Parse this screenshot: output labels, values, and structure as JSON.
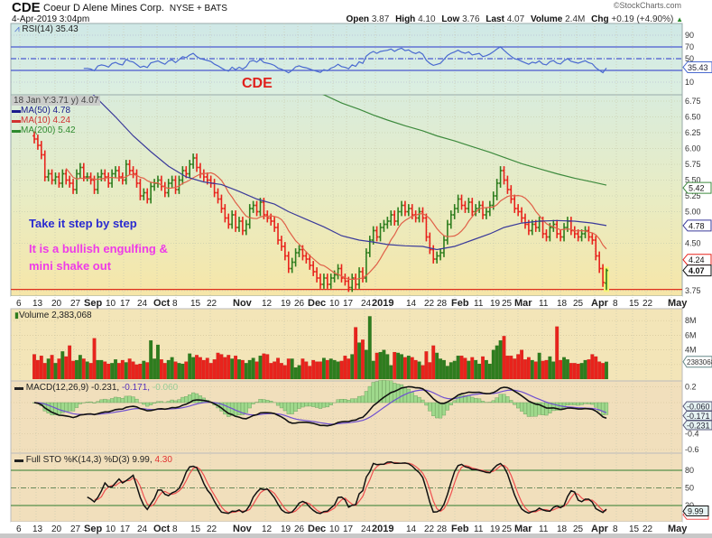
{
  "header": {
    "symbol": "CDE",
    "company": "Coeur D Alene Mines Corp.",
    "exchange": "NYSE + BATS",
    "datetime": "4-Apr-2019 3:04pm",
    "brand": "©StockCharts.com",
    "open_label": "Open",
    "open": "3.87",
    "high_label": "High",
    "high": "4.10",
    "low_label": "Low",
    "low": "3.76",
    "last_label": "Last",
    "last": "4.07",
    "volume_label": "Volume",
    "volume": "2.4M",
    "chg_label": "Chg",
    "chg": "+0.19 (+4.90%)",
    "chg_arrow": "▲"
  },
  "annotations": {
    "cde": "CDE",
    "line1": "Take it step by step",
    "line2": "It is a bullish engulfing &",
    "line3": "mini shake out"
  },
  "colors": {
    "up": "#2e7d1e",
    "down": "#e8231c",
    "ma50": "#3a3a9a",
    "ma10": "#e06048",
    "ma200": "#3d8a3d",
    "rsi": "#4a6ad0",
    "macd": "#111111",
    "signal": "#7050d0",
    "histogram": "#9fd98c",
    "sto_k": "#111111",
    "sto_d": "#f05050",
    "support": "#e0301c"
  },
  "chart_data": {
    "type": "ohlc",
    "symbol": "CDE",
    "support_line": 3.77,
    "price_axis": {
      "ylim": [
        3.7,
        6.9
      ],
      "ticks": [
        "6.75",
        "6.50",
        "6.25",
        "6.00",
        "5.75",
        "5.50",
        "5.25",
        "5.00",
        "4.50",
        "3.75"
      ]
    },
    "price_legend": {
      "crosshair": "18 Jan Y:3.71 y) 4.07",
      "ma50": "MA(50) 4.78",
      "ma10": "MA(10) 4.24",
      "ma200": "MA(200) 5.42"
    },
    "price_tags": {
      "ma200": "5.42",
      "ma50": "4.78",
      "ma10": "4.24",
      "last": "4.07"
    },
    "last_bar": {
      "open": 3.87,
      "high": 4.1,
      "low": 3.76,
      "close": 4.07
    },
    "x_axis_labels": [
      {
        "t": "6"
      },
      {
        "t": "13"
      },
      {
        "t": "20"
      },
      {
        "t": "27"
      },
      {
        "t": "Sep",
        "bold": true
      },
      {
        "t": "10"
      },
      {
        "t": "17"
      },
      {
        "t": "24"
      },
      {
        "t": "Oct",
        "bold": true
      },
      {
        "t": "8"
      },
      {
        "t": "15"
      },
      {
        "t": "22"
      },
      {
        "t": "Nov",
        "bold": true
      },
      {
        "t": "12"
      },
      {
        "t": "19"
      },
      {
        "t": "26"
      },
      {
        "t": "Dec",
        "bold": true
      },
      {
        "t": "10"
      },
      {
        "t": "17"
      },
      {
        "t": "24"
      },
      {
        "t": "2019",
        "bold": true
      },
      {
        "t": "14"
      },
      {
        "t": "22"
      },
      {
        "t": "28"
      },
      {
        "t": "Feb",
        "bold": true
      },
      {
        "t": "11"
      },
      {
        "t": "19"
      },
      {
        "t": "25"
      },
      {
        "t": "Mar",
        "bold": true
      },
      {
        "t": "11"
      },
      {
        "t": "18"
      },
      {
        "t": "25"
      },
      {
        "t": "Apr",
        "bold": true
      },
      {
        "t": "8"
      },
      {
        "t": "15"
      },
      {
        "t": "22"
      },
      {
        "t": "May",
        "bold": true
      }
    ],
    "weeks": [
      {
        "week": "2018-08-13",
        "closes": [
          6.15,
          6.05,
          5.9,
          5.55,
          5.6
        ],
        "volume_m": [
          3.4,
          2.6,
          3.2,
          2.2,
          2.8
        ],
        "ma50": 7.6,
        "ma200": null
      },
      {
        "week": "2018-08-20",
        "closes": [
          5.5,
          5.55,
          5.45,
          5.6,
          5.5
        ],
        "volume_m": [
          3.3,
          2.2,
          2.8,
          3.8,
          3.1
        ],
        "ma50": 7.3,
        "ma200": null
      },
      {
        "week": "2018-08-27",
        "closes": [
          5.45,
          5.35,
          5.6,
          5.7,
          5.55
        ],
        "volume_m": [
          4.6,
          2.5,
          2.6,
          3.3,
          2.8
        ],
        "ma50": 7.0,
        "ma200": null
      },
      {
        "week": "2018-09-04",
        "closes": [
          5.55,
          5.5,
          5.35,
          5.55
        ],
        "volume_m": [
          2.4,
          2.2,
          5.6,
          2.6
        ],
        "ma50": 6.78,
        "ma200": null
      },
      {
        "week": "2018-09-10",
        "closes": [
          5.6,
          5.55,
          5.45,
          5.6,
          5.65
        ],
        "volume_m": [
          2.6,
          2.4,
          2.1,
          2.2,
          2.7
        ],
        "ma50": 6.5,
        "ma200": null
      },
      {
        "week": "2018-09-17",
        "closes": [
          5.55,
          5.5,
          5.75,
          5.65,
          5.6
        ],
        "volume_m": [
          2.2,
          2.6,
          2.3,
          2.8,
          2.4
        ],
        "ma50": 6.2,
        "ma200": null
      },
      {
        "week": "2018-09-24",
        "closes": [
          5.45,
          5.25,
          5.3,
          5.2,
          5.4
        ],
        "volume_m": [
          2.0,
          2.1,
          2.5,
          2.3,
          5.3
        ],
        "ma50": 5.95,
        "ma200": null
      },
      {
        "week": "2018-10-01",
        "closes": [
          5.45,
          5.5,
          5.4,
          5.3,
          5.45
        ],
        "volume_m": [
          2.8,
          4.7,
          2.7,
          2.2,
          2.6
        ],
        "ma50": 5.72,
        "ma200": null
      },
      {
        "week": "2018-10-08",
        "closes": [
          5.5,
          5.35,
          5.5,
          5.65,
          5.6
        ],
        "volume_m": [
          3.0,
          2.4,
          2.2,
          2.1,
          2.4
        ],
        "ma50": 5.55,
        "ma200": null
      },
      {
        "week": "2018-10-15",
        "closes": [
          5.75,
          5.85,
          5.7,
          5.6,
          5.55
        ],
        "volume_m": [
          3.5,
          3.0,
          3.3,
          3.0,
          2.6
        ],
        "ma50": 5.47,
        "ma200": null
      },
      {
        "week": "2018-10-22",
        "closes": [
          5.5,
          5.45,
          5.3,
          5.2,
          5.05
        ],
        "volume_m": [
          2.9,
          2.2,
          2.7,
          3.6,
          3.4
        ],
        "ma50": 5.43,
        "ma200": null
      },
      {
        "week": "2018-10-29",
        "closes": [
          4.9,
          4.8,
          4.95,
          4.75,
          4.85
        ],
        "volume_m": [
          3.0,
          3.3,
          2.8,
          3.2,
          2.7
        ],
        "ma50": 5.32,
        "ma200": null
      },
      {
        "week": "2018-11-05",
        "closes": [
          4.7,
          4.8,
          5.05,
          5.1,
          5.0
        ],
        "volume_m": [
          2.6,
          2.2,
          2.6,
          2.9,
          2.4
        ],
        "ma50": 5.2,
        "ma200": null
      },
      {
        "week": "2018-11-12",
        "closes": [
          5.15,
          4.95,
          4.9,
          4.85,
          4.75
        ],
        "volume_m": [
          3.2,
          3.5,
          3.4,
          2.2,
          2.4
        ],
        "ma50": 5.12,
        "ma200": null
      },
      {
        "week": "2018-11-19",
        "closes": [
          4.55,
          4.45,
          4.3,
          4.1
        ],
        "volume_m": [
          2.9,
          2.2,
          1.9,
          2.8
        ],
        "ma50": 5.0,
        "ma200": null
      },
      {
        "week": "2018-11-26",
        "closes": [
          4.2,
          4.35,
          4.4,
          4.3,
          4.25
        ],
        "volume_m": [
          2.8,
          1.6,
          1.9,
          2.8,
          2.4
        ],
        "ma50": 4.88,
        "ma200": 6.95
      },
      {
        "week": "2018-12-03",
        "closes": [
          4.15,
          4.05,
          3.95,
          3.85,
          3.95
        ],
        "volume_m": [
          1.8,
          2.6,
          2.4,
          2.4,
          2.9
        ],
        "ma50": 4.76,
        "ma200": 6.85
      },
      {
        "week": "2018-12-10",
        "closes": [
          3.85,
          3.95,
          4.0,
          4.1,
          3.95
        ],
        "volume_m": [
          2.6,
          2.8,
          2.6,
          2.4,
          2.5
        ],
        "ma50": 4.62,
        "ma200": 6.72
      },
      {
        "week": "2018-12-17",
        "closes": [
          3.9,
          3.8,
          3.95,
          3.85,
          4.05
        ],
        "volume_m": [
          3.2,
          2.8,
          3.4,
          7.1,
          5.0
        ],
        "ma50": 4.55,
        "ma200": 6.62
      },
      {
        "week": "2018-12-24",
        "closes": [
          3.95,
          4.35,
          4.55,
          4.7
        ],
        "volume_m": [
          5.4,
          4.0,
          8.6,
          2.5
        ],
        "ma50": 4.52,
        "ma200": 6.53
      },
      {
        "week": "2018-12-31",
        "closes": [
          4.6,
          4.75,
          4.8,
          4.85
        ],
        "volume_m": [
          3.6,
          3.7,
          4.0,
          3.4
        ],
        "ma50": 4.48,
        "ma200": 6.45
      },
      {
        "week": "2019-01-07",
        "closes": [
          4.95,
          4.85,
          5.0,
          5.1,
          5.0
        ],
        "volume_m": [
          1.9,
          3.7,
          3.6,
          3.4,
          3.0
        ],
        "ma50": 4.46,
        "ma200": 6.36
      },
      {
        "week": "2019-01-14",
        "closes": [
          5.05,
          4.95,
          4.9,
          5.0,
          4.9
        ],
        "volume_m": [
          3.2,
          3.0,
          2.6,
          2.4,
          1.9
        ],
        "ma50": 4.45,
        "ma200": 6.28
      },
      {
        "week": "2019-01-22",
        "closes": [
          4.6,
          4.4,
          4.25,
          4.3
        ],
        "volume_m": [
          3.8,
          2.3,
          4.6,
          3.6
        ],
        "ma50": 4.4,
        "ma200": 6.2
      },
      {
        "week": "2019-01-28",
        "closes": [
          4.35,
          4.55,
          4.8,
          4.95,
          5.05
        ],
        "volume_m": [
          2.8,
          2.6,
          1.8,
          2.3,
          2.5
        ],
        "ma50": 4.45,
        "ma200": 6.12
      },
      {
        "week": "2019-02-04",
        "closes": [
          5.2,
          5.1,
          5.05,
          5.15,
          5.0
        ],
        "volume_m": [
          3.2,
          3.2,
          2.9,
          2.5,
          3.0
        ],
        "ma50": 4.55,
        "ma200": 6.03
      },
      {
        "week": "2019-02-11",
        "closes": [
          5.05,
          5.1,
          4.95,
          5.0,
          5.1
        ],
        "volume_m": [
          2.6,
          2.1,
          3.1,
          2.6,
          2.1
        ],
        "ma50": 4.65,
        "ma200": 5.94
      },
      {
        "week": "2019-02-19",
        "closes": [
          5.25,
          5.45,
          5.65,
          5.5
        ],
        "volume_m": [
          4.0,
          4.6,
          5.3,
          5.9
        ],
        "ma50": 4.75,
        "ma200": 5.86
      },
      {
        "week": "2019-02-25",
        "closes": [
          5.35,
          5.2,
          5.05,
          5.0,
          4.9
        ],
        "volume_m": [
          3.2,
          3.2,
          2.8,
          3.4,
          4.0
        ],
        "ma50": 4.82,
        "ma200": 5.76
      },
      {
        "week": "2019-03-04",
        "closes": [
          4.8,
          4.7,
          4.8,
          4.75,
          4.85
        ],
        "volume_m": [
          2.7,
          3.0,
          2.6,
          2.4,
          3.6
        ],
        "ma50": 4.85,
        "ma200": 5.68
      },
      {
        "week": "2019-03-11",
        "closes": [
          4.65,
          4.6,
          4.75,
          4.8,
          4.65
        ],
        "volume_m": [
          2.5,
          2.6,
          3.1,
          2.4,
          7.2
        ],
        "ma50": 4.86,
        "ma200": 5.6
      },
      {
        "week": "2019-03-18",
        "closes": [
          4.6,
          4.75,
          4.85,
          4.7,
          4.65
        ],
        "volume_m": [
          2.6,
          3.0,
          2.7,
          2.2,
          2.2
        ],
        "ma50": 4.85,
        "ma200": 5.53
      },
      {
        "week": "2019-03-25",
        "closes": [
          4.6,
          4.65,
          4.7,
          4.6,
          4.55
        ],
        "volume_m": [
          2.1,
          2.2,
          2.6,
          2.7,
          3.4
        ],
        "ma50": 4.82,
        "ma200": 5.47
      },
      {
        "week": "2019-04-01",
        "closes": [
          4.3,
          4.1,
          3.88,
          4.07
        ],
        "volume_m": [
          3.1,
          2.4,
          2.2,
          2.38
        ],
        "ma50": 4.78,
        "ma200": 5.42
      }
    ],
    "rsi": {
      "legend": "RSI(14) 35.43",
      "ticks": [
        "90",
        "70",
        "50",
        "10"
      ],
      "tag": "35.43",
      "overbought": 70,
      "oversold": 30
    },
    "volume": {
      "legend": "Volume 2,383,068",
      "ticks": [
        "8M",
        "6M",
        "4M"
      ],
      "tag": "2383068"
    },
    "macd": {
      "label": "MACD(12,26,9)",
      "macd": "-0.231,",
      "signal": "-0.171,",
      "histogram": "-0.060",
      "ticks": [
        "0.2",
        "-0.4",
        "-0.6"
      ],
      "tags": [
        "-0.060",
        "-0.171",
        "-0.231"
      ]
    },
    "stochastic": {
      "label": "Full STO %K(14,3) %D(3)",
      "k": "9.99,",
      "d": "4.30",
      "ticks": [
        "80",
        "50",
        "20"
      ],
      "tag_k": "9.99",
      "tag_d": "4.30"
    }
  }
}
